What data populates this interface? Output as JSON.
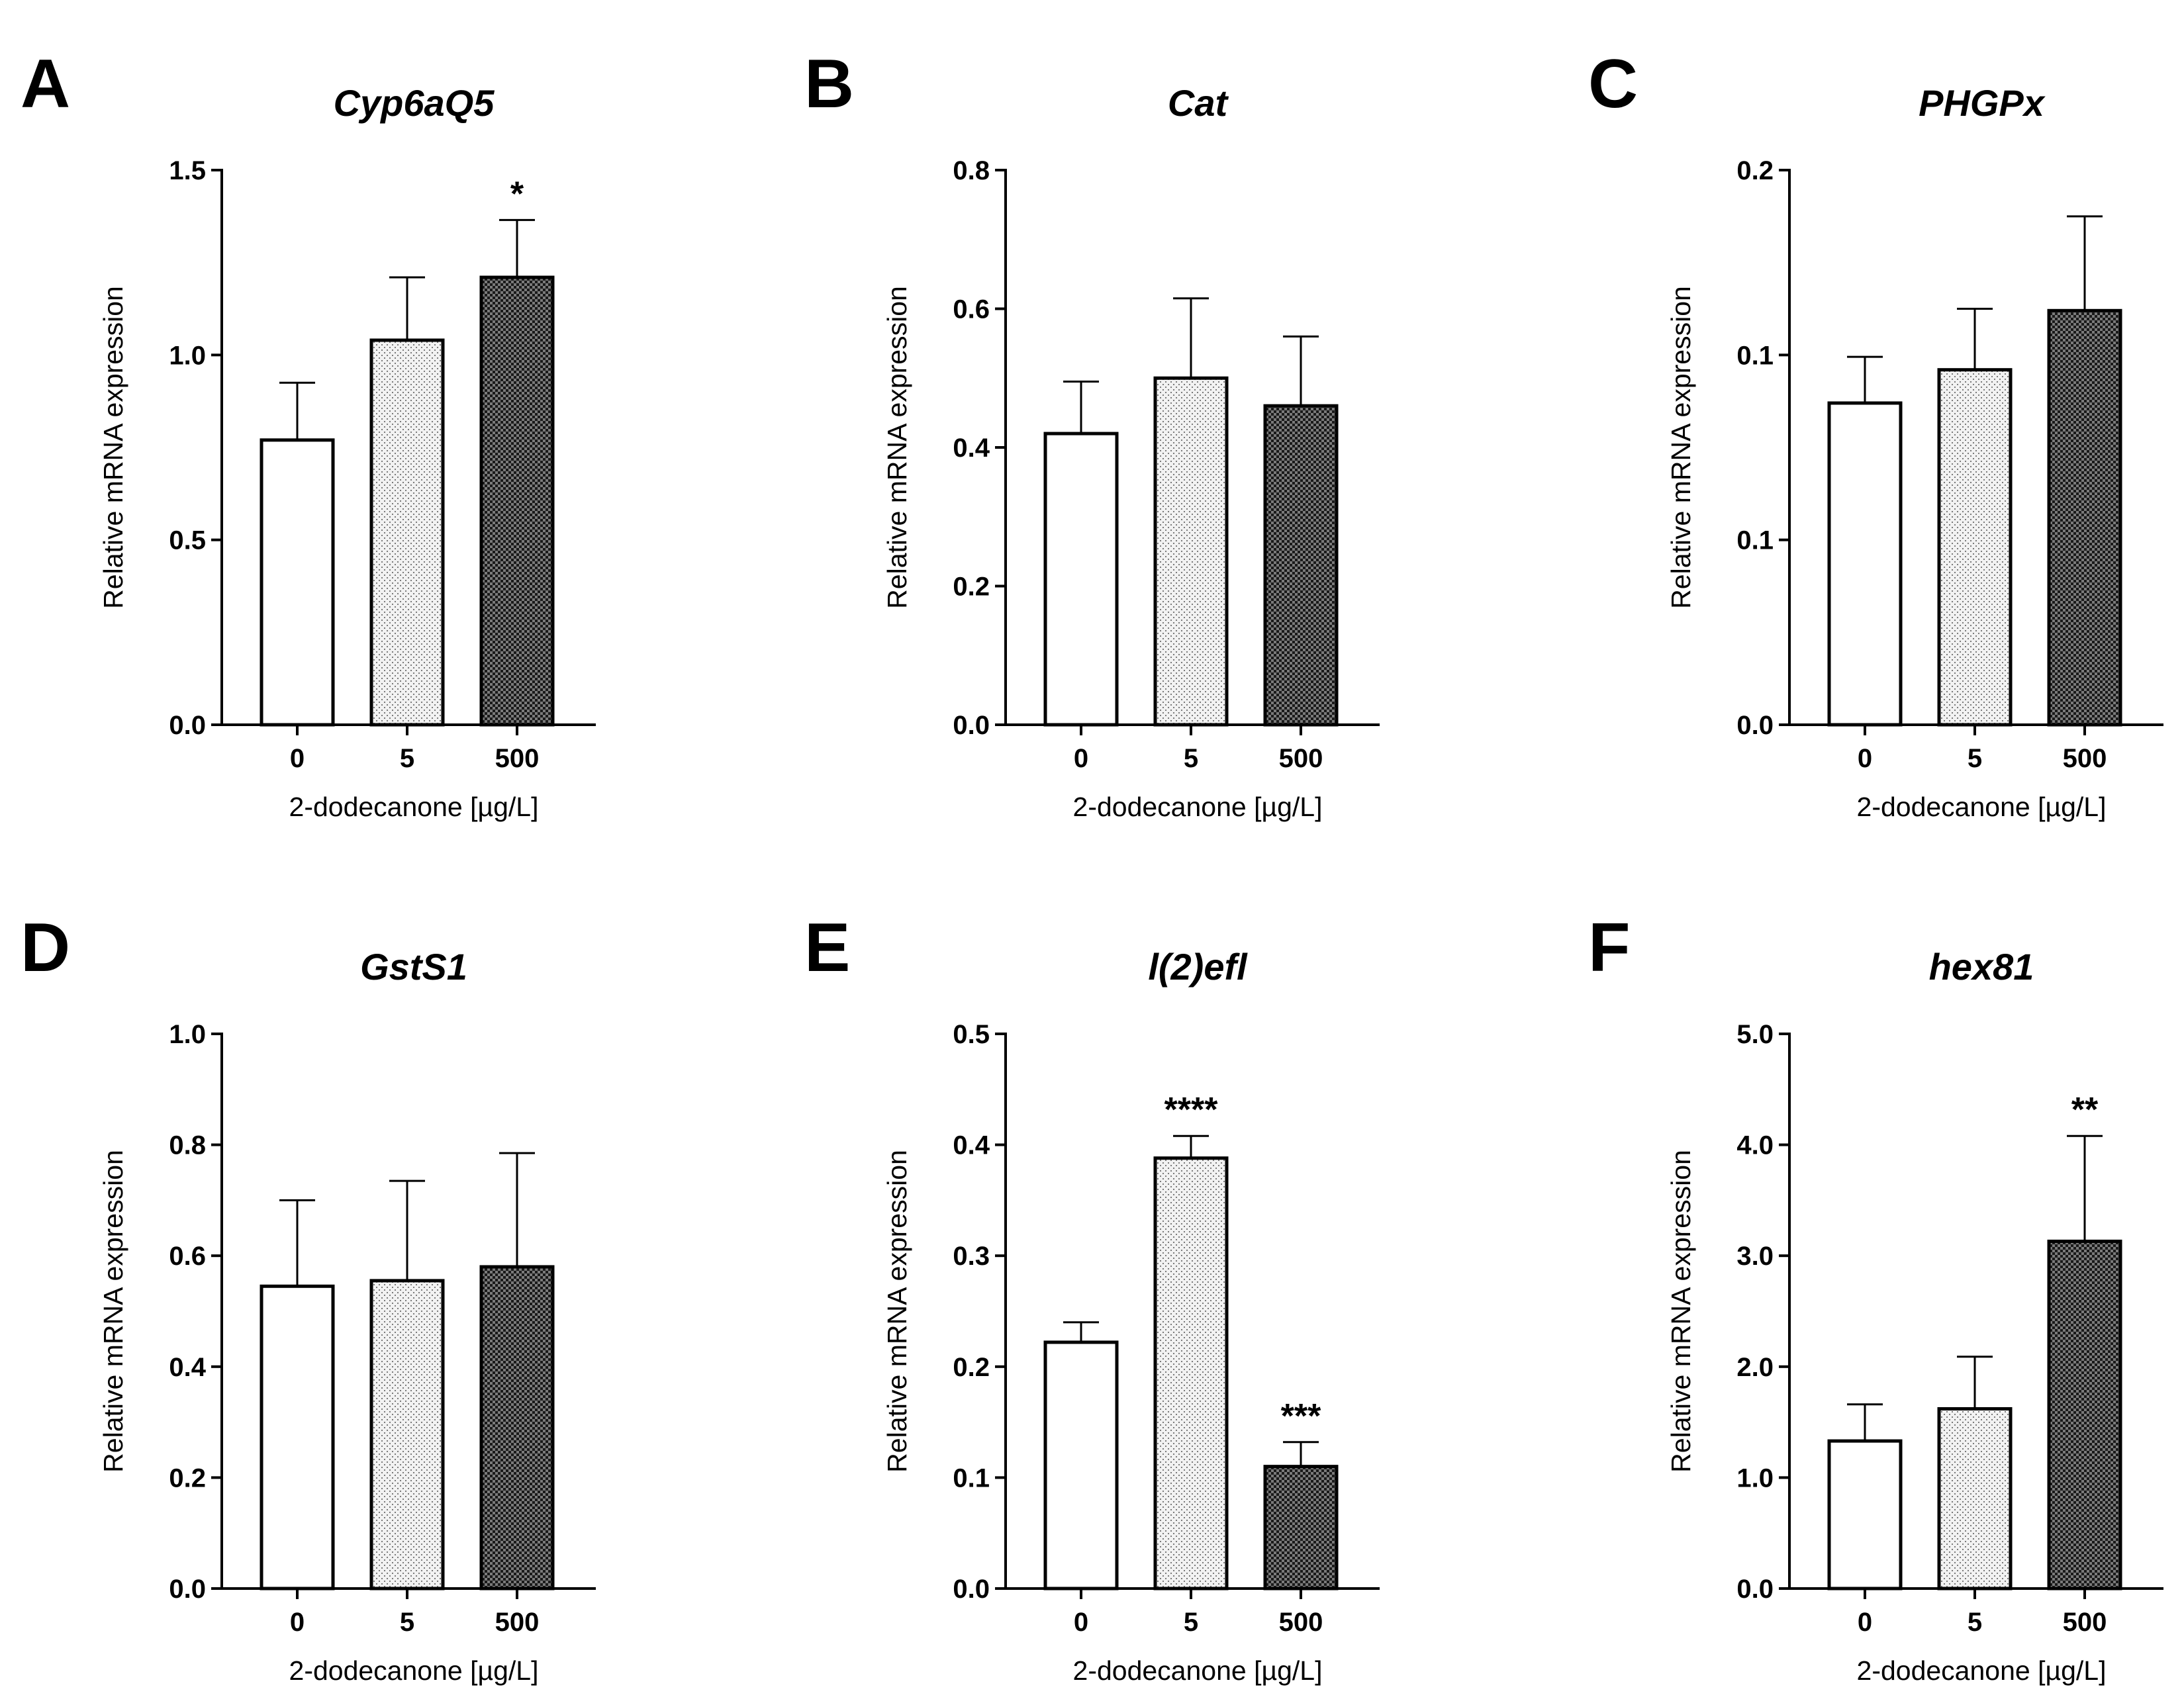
{
  "figure": {
    "shared_ylabel": "Relative mRNA expression",
    "shared_xlabel": "2-dodecanone [µg/L]"
  },
  "colors": {
    "bar_0": "#ffffff",
    "bar_5": "#d9d9d9",
    "bar_500": "#5a5a5a",
    "stroke": "#000000"
  },
  "chart_data": [
    {
      "panel": "A",
      "type": "bar",
      "title": "Cyp6aQ5",
      "xlabel": "2-dodecanone [µg/L]",
      "ylabel": "Relative mRNA expression",
      "categories": [
        "0",
        "5",
        "500"
      ],
      "values": [
        0.77,
        1.04,
        1.21
      ],
      "errors": [
        0.155,
        0.17,
        0.155
      ],
      "significance": [
        "",
        "",
        "*"
      ],
      "ylim": [
        0,
        1.5
      ],
      "yticks": [
        0.0,
        0.5,
        1.0,
        1.5
      ],
      "ytick_labels": [
        "0.0",
        "0.5",
        "1.0",
        "1.5"
      ]
    },
    {
      "panel": "B",
      "type": "bar",
      "title": "Cat",
      "xlabel": "2-dodecanone [µg/L]",
      "ylabel": "Relative mRNA expression",
      "categories": [
        "0",
        "5",
        "500"
      ],
      "values": [
        0.42,
        0.5,
        0.46
      ],
      "errors": [
        0.075,
        0.115,
        0.1
      ],
      "significance": [
        "",
        "",
        ""
      ],
      "ylim": [
        0,
        0.8
      ],
      "yticks": [
        0.0,
        0.2,
        0.4,
        0.6,
        0.8
      ],
      "ytick_labels": [
        "0.0",
        "0.2",
        "0.4",
        "0.6",
        "0.8"
      ]
    },
    {
      "panel": "C",
      "type": "bar",
      "title": "PHGPx",
      "xlabel": "2-dodecanone [µg/L]",
      "ylabel": "Relative mRNA expression",
      "categories": [
        "0",
        "5",
        "500"
      ],
      "values": [
        0.087,
        0.096,
        0.112
      ],
      "errors": [
        0.0125,
        0.0165,
        0.0255
      ],
      "significance": [
        "",
        "",
        ""
      ],
      "ylim": [
        0,
        0.15
      ],
      "yticks": [
        0.0,
        0.05,
        0.1,
        0.15
      ],
      "ytick_labels": [
        "0.0",
        "0.1",
        "0.1",
        "0.2"
      ]
    },
    {
      "panel": "D",
      "type": "bar",
      "title": "GstS1",
      "xlabel": "2-dodecanone [µg/L]",
      "ylabel": "Relative mRNA expression",
      "categories": [
        "0",
        "5",
        "500"
      ],
      "values": [
        0.545,
        0.555,
        0.58
      ],
      "errors": [
        0.155,
        0.18,
        0.205
      ],
      "significance": [
        "",
        "",
        ""
      ],
      "ylim": [
        0,
        1.0
      ],
      "yticks": [
        0.0,
        0.2,
        0.4,
        0.6,
        0.8,
        1.0
      ],
      "ytick_labels": [
        "0.0",
        "0.2",
        "0.4",
        "0.6",
        "0.8",
        "1.0"
      ]
    },
    {
      "panel": "E",
      "type": "bar",
      "title": "l(2)efl",
      "xlabel": "2-dodecanone [µg/L]",
      "ylabel": "Relative mRNA expression",
      "categories": [
        "0",
        "5",
        "500"
      ],
      "values": [
        0.222,
        0.388,
        0.11
      ],
      "errors": [
        0.018,
        0.02,
        0.022
      ],
      "significance": [
        "",
        "****",
        "***"
      ],
      "ylim": [
        0,
        0.5
      ],
      "yticks": [
        0.0,
        0.1,
        0.2,
        0.3,
        0.4,
        0.5
      ],
      "ytick_labels": [
        "0.0",
        "0.1",
        "0.2",
        "0.3",
        "0.4",
        "0.5"
      ]
    },
    {
      "panel": "F",
      "type": "bar",
      "title": "hex81",
      "xlabel": "2-dodecanone [µg/L]",
      "ylabel": "Relative mRNA expression",
      "categories": [
        "0",
        "5",
        "500"
      ],
      "values": [
        1.33,
        1.62,
        3.13
      ],
      "errors": [
        0.33,
        0.47,
        0.95
      ],
      "significance": [
        "",
        "",
        "**"
      ],
      "ylim": [
        0,
        5.0
      ],
      "yticks": [
        0.0,
        1.0,
        2.0,
        3.0,
        4.0,
        5.0
      ],
      "ytick_labels": [
        "0.0",
        "1.0",
        "2.0",
        "3.0",
        "4.0",
        "5.0"
      ]
    }
  ]
}
